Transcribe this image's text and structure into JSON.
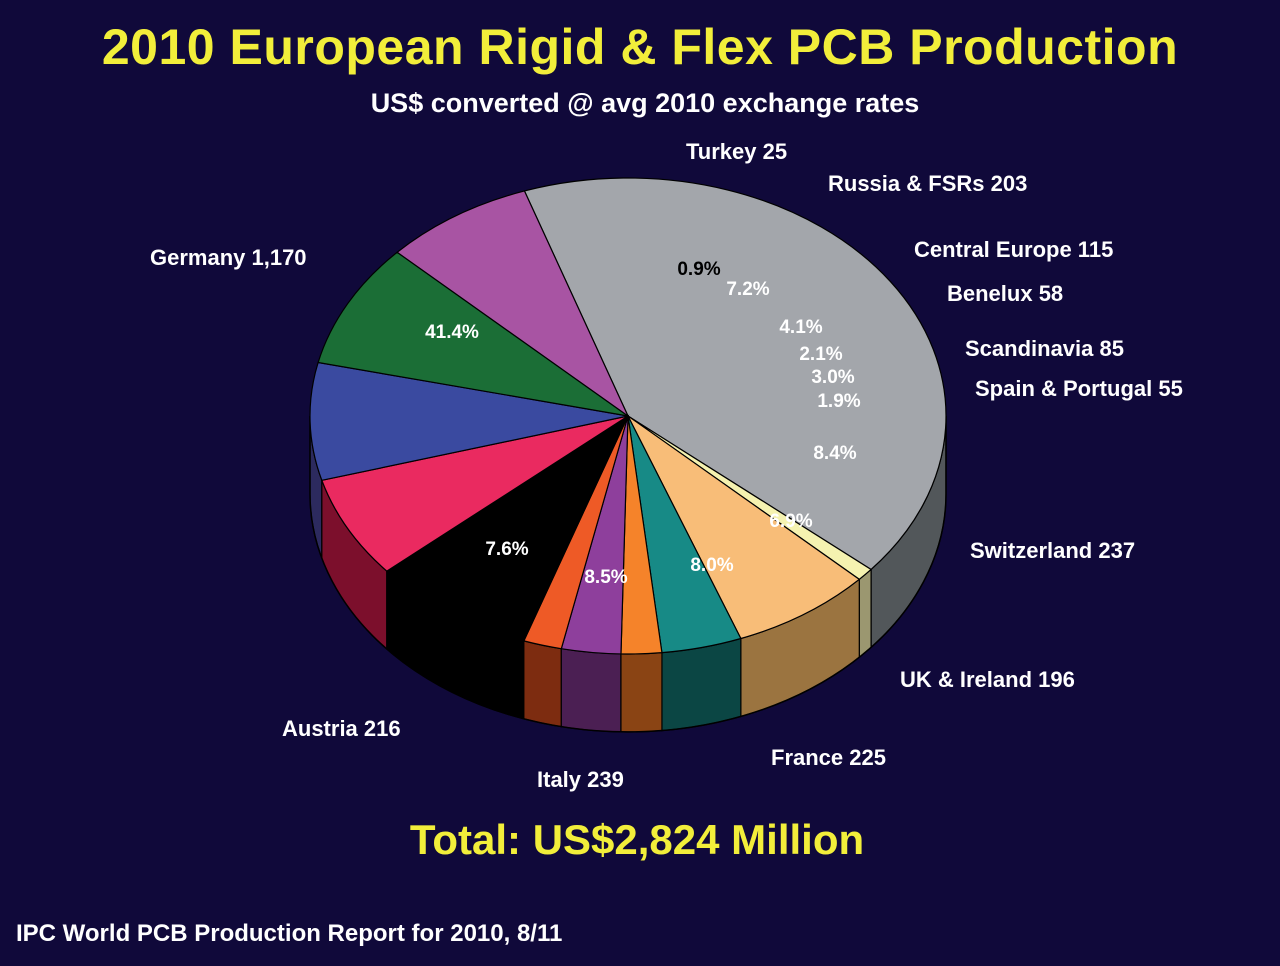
{
  "title": "2010 European Rigid & Flex PCB Production",
  "subtitle": "US$ converted @ avg 2010 exchange rates",
  "total": "Total: US$2,824 Million",
  "source": "IPC World PCB Production Report for 2010, 8/11",
  "chart_data": {
    "type": "pie",
    "legend": "none",
    "slices": [
      {
        "name": "Germany",
        "value": 1170,
        "value_label": "1,170",
        "percent": "41.4%",
        "color": "#a3a6ab",
        "side_color": "#52575a"
      },
      {
        "name": "Turkey",
        "value": 25,
        "value_label": "25",
        "percent": "0.9%",
        "color": "#f5f2b0",
        "side_color": "#9b9770"
      },
      {
        "name": "Russia & FSRs",
        "value": 203,
        "value_label": "203",
        "percent": "7.2%",
        "color": "#f8bd78",
        "side_color": "#9b7440"
      },
      {
        "name": "Central Europe",
        "value": 115,
        "value_label": "115",
        "percent": "4.1%",
        "color": "#178a86",
        "side_color": "#0b4644"
      },
      {
        "name": "Benelux",
        "value": 58,
        "value_label": "58",
        "percent": "2.1%",
        "color": "#f5832a",
        "side_color": "#8a4414"
      },
      {
        "name": "Scandinavia",
        "value": 85,
        "value_label": "85",
        "percent": "3.0%",
        "color": "#8e3f9c",
        "side_color": "#4b1f53"
      },
      {
        "name": "Spain & Portugal",
        "value": 55,
        "value_label": "55",
        "percent": "1.9%",
        "color": "#ee5a26",
        "side_color": "#7d2c10"
      },
      {
        "name": "Switzerland",
        "value": 237,
        "value_label": "237",
        "percent": "8.4%",
        "color": "#000000",
        "side_color": "#000000"
      },
      {
        "name": "UK & Ireland",
        "value": 196,
        "value_label": "196",
        "percent": "6.9%",
        "color": "#ea2a60",
        "side_color": "#7c0f2c"
      },
      {
        "name": "France",
        "value": 225,
        "value_label": "225",
        "percent": "8.0%",
        "color": "#3a4aa0",
        "side_color": "#2c2a5e"
      },
      {
        "name": "Italy",
        "value": 239,
        "value_label": "239",
        "percent": "8.5%",
        "color": "#1b6e36",
        "side_color": "#0b3013"
      },
      {
        "name": "Austria",
        "value": 216,
        "value_label": "216",
        "percent": "7.6%",
        "color": "#a854a3",
        "side_color": "#7a2b8a"
      }
    ]
  }
}
